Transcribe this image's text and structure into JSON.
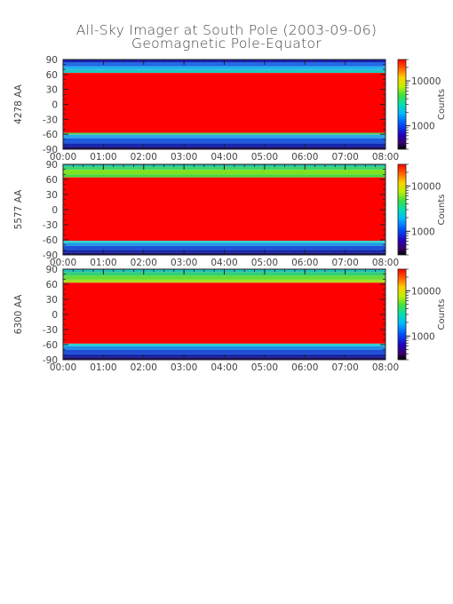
{
  "figure": {
    "title": "All-Sky Imager at South Pole (2003-09-06)",
    "subtitle": "Geomagnetic Pole-Equator"
  },
  "chart_data": [
    {
      "type": "heatmap",
      "ylabel": "4278 AA",
      "yticks": [
        "90",
        "60",
        "30",
        "0",
        "-30",
        "-60",
        "-90"
      ],
      "ylim": [
        -90,
        90
      ],
      "xticks": [
        "00:00",
        "01:00",
        "02:00",
        "03:00",
        "04:00",
        "05:00",
        "06:00",
        "07:00",
        "08:00"
      ],
      "xlim": [
        "00:00",
        "08:00"
      ],
      "colorbar": {
        "label": "Counts",
        "scale": "log",
        "ticks": [
          "10000",
          "1000"
        ],
        "range": [
          300,
          30000
        ]
      },
      "bands": [
        {
          "from": 90,
          "to": 84,
          "color": "#1a1fb8"
        },
        {
          "from": 84,
          "to": 76,
          "color": "#1f6ce8"
        },
        {
          "from": 76,
          "to": 69,
          "color": "#22b4ee"
        },
        {
          "from": 69,
          "to": 63,
          "color": "#20c8c0"
        },
        {
          "from": 63,
          "to": -57,
          "color": "#ff0000"
        },
        {
          "from": -57,
          "to": -61,
          "color": "#4ad46a"
        },
        {
          "from": -61,
          "to": -68,
          "color": "#2fa6ea"
        },
        {
          "from": -68,
          "to": -78,
          "color": "#1c5be0"
        },
        {
          "from": -78,
          "to": -85,
          "color": "#1428b4"
        },
        {
          "from": -85,
          "to": -90,
          "color": "#160a6c"
        }
      ]
    },
    {
      "type": "heatmap",
      "ylabel": "5577 AA",
      "yticks": [
        "90",
        "60",
        "30",
        "0",
        "-30",
        "-60",
        "-90"
      ],
      "ylim": [
        -90,
        90
      ],
      "xticks": [
        "00:00",
        "01:00",
        "02:00",
        "03:00",
        "04:00",
        "05:00",
        "06:00",
        "07:00",
        "08:00"
      ],
      "xlim": [
        "00:00",
        "08:00"
      ],
      "colorbar": {
        "label": "Counts",
        "scale": "log",
        "ticks": [
          "10000",
          "1000"
        ],
        "range": [
          300,
          30000
        ]
      },
      "bands": [
        {
          "from": 90,
          "to": 85,
          "color": "#22c0a0"
        },
        {
          "from": 85,
          "to": 79,
          "color": "#3ed86a"
        },
        {
          "from": 79,
          "to": 70,
          "color": "#7ee21e"
        },
        {
          "from": 70,
          "to": 64,
          "color": "#49d83f"
        },
        {
          "from": 64,
          "to": -62,
          "color": "#ff0000"
        },
        {
          "from": -62,
          "to": -66,
          "color": "#2bd8d2"
        },
        {
          "from": -66,
          "to": -72,
          "color": "#209ae8"
        },
        {
          "from": -72,
          "to": -80,
          "color": "#1c52d8"
        },
        {
          "from": -80,
          "to": -86,
          "color": "#1526ae"
        },
        {
          "from": -86,
          "to": -90,
          "color": "#180c68"
        }
      ]
    },
    {
      "type": "heatmap",
      "ylabel": "6300 AA",
      "yticks": [
        "90",
        "60",
        "30",
        "0",
        "-30",
        "-60",
        "-90"
      ],
      "ylim": [
        -90,
        90
      ],
      "xticks": [
        "00:00",
        "01:00",
        "02:00",
        "03:00",
        "04:00",
        "05:00",
        "06:00",
        "07:00",
        "08:00"
      ],
      "xlim": [
        "00:00",
        "08:00"
      ],
      "colorbar": {
        "label": "Counts",
        "scale": "log",
        "ticks": [
          "10000",
          "1000"
        ],
        "range": [
          300,
          30000
        ]
      },
      "bands": [
        {
          "from": 90,
          "to": 84,
          "color": "#22c0b8"
        },
        {
          "from": 84,
          "to": 77,
          "color": "#32d078"
        },
        {
          "from": 77,
          "to": 69,
          "color": "#68dc36"
        },
        {
          "from": 69,
          "to": 63,
          "color": "#a9e020"
        },
        {
          "from": 63,
          "to": -58,
          "color": "#ff0000"
        },
        {
          "from": -58,
          "to": -63,
          "color": "#2ad0d8"
        },
        {
          "from": -63,
          "to": -70,
          "color": "#1f8ee6"
        },
        {
          "from": -70,
          "to": -79,
          "color": "#1c4fd6"
        },
        {
          "from": -79,
          "to": -85,
          "color": "#1526ae"
        },
        {
          "from": -85,
          "to": -90,
          "color": "#180c68"
        }
      ]
    }
  ]
}
